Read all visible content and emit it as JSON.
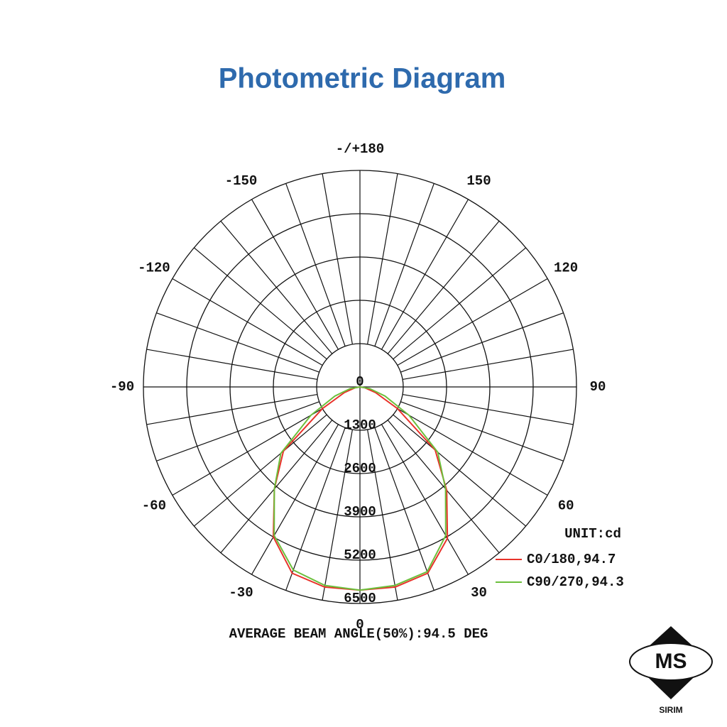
{
  "chart_data": {
    "type": "polar",
    "title": "Photometric Diagram",
    "x": [
      -90,
      -80,
      -70,
      -60,
      -50,
      -40,
      -30,
      -20,
      -10,
      0,
      10,
      20,
      30,
      40,
      50,
      60,
      70,
      80,
      90
    ],
    "series": [
      {
        "name": "C0/180,94.7",
        "color": "#e8322a",
        "values": [
          0,
          150,
          500,
          1300,
          3000,
          4000,
          5200,
          5950,
          6100,
          6100,
          6100,
          5950,
          5250,
          4050,
          2950,
          1300,
          500,
          150,
          0
        ]
      },
      {
        "name": "C90/270,94.3",
        "color": "#6cbf3c",
        "values": [
          0,
          300,
          800,
          1700,
          3100,
          4000,
          5150,
          5850,
          6050,
          6100,
          6050,
          5900,
          5150,
          4000,
          3050,
          1700,
          800,
          300,
          0
        ]
      }
    ],
    "rlim": [
      0,
      6500
    ],
    "rticks": [
      0,
      1300,
      2600,
      3900,
      5200,
      6500
    ],
    "xticks": [
      0,
      30,
      60,
      90,
      120,
      150,
      {
        "value": 180,
        "label": "-/+180"
      },
      -150,
      -120,
      -90,
      -60,
      -30
    ],
    "theta_grid_step": 10,
    "unit": "UNIT:cd",
    "footer": "AVERAGE BEAM ANGLE(50%):94.5 DEG"
  },
  "logo": {
    "text": "MS",
    "caption": "SIRIM"
  }
}
